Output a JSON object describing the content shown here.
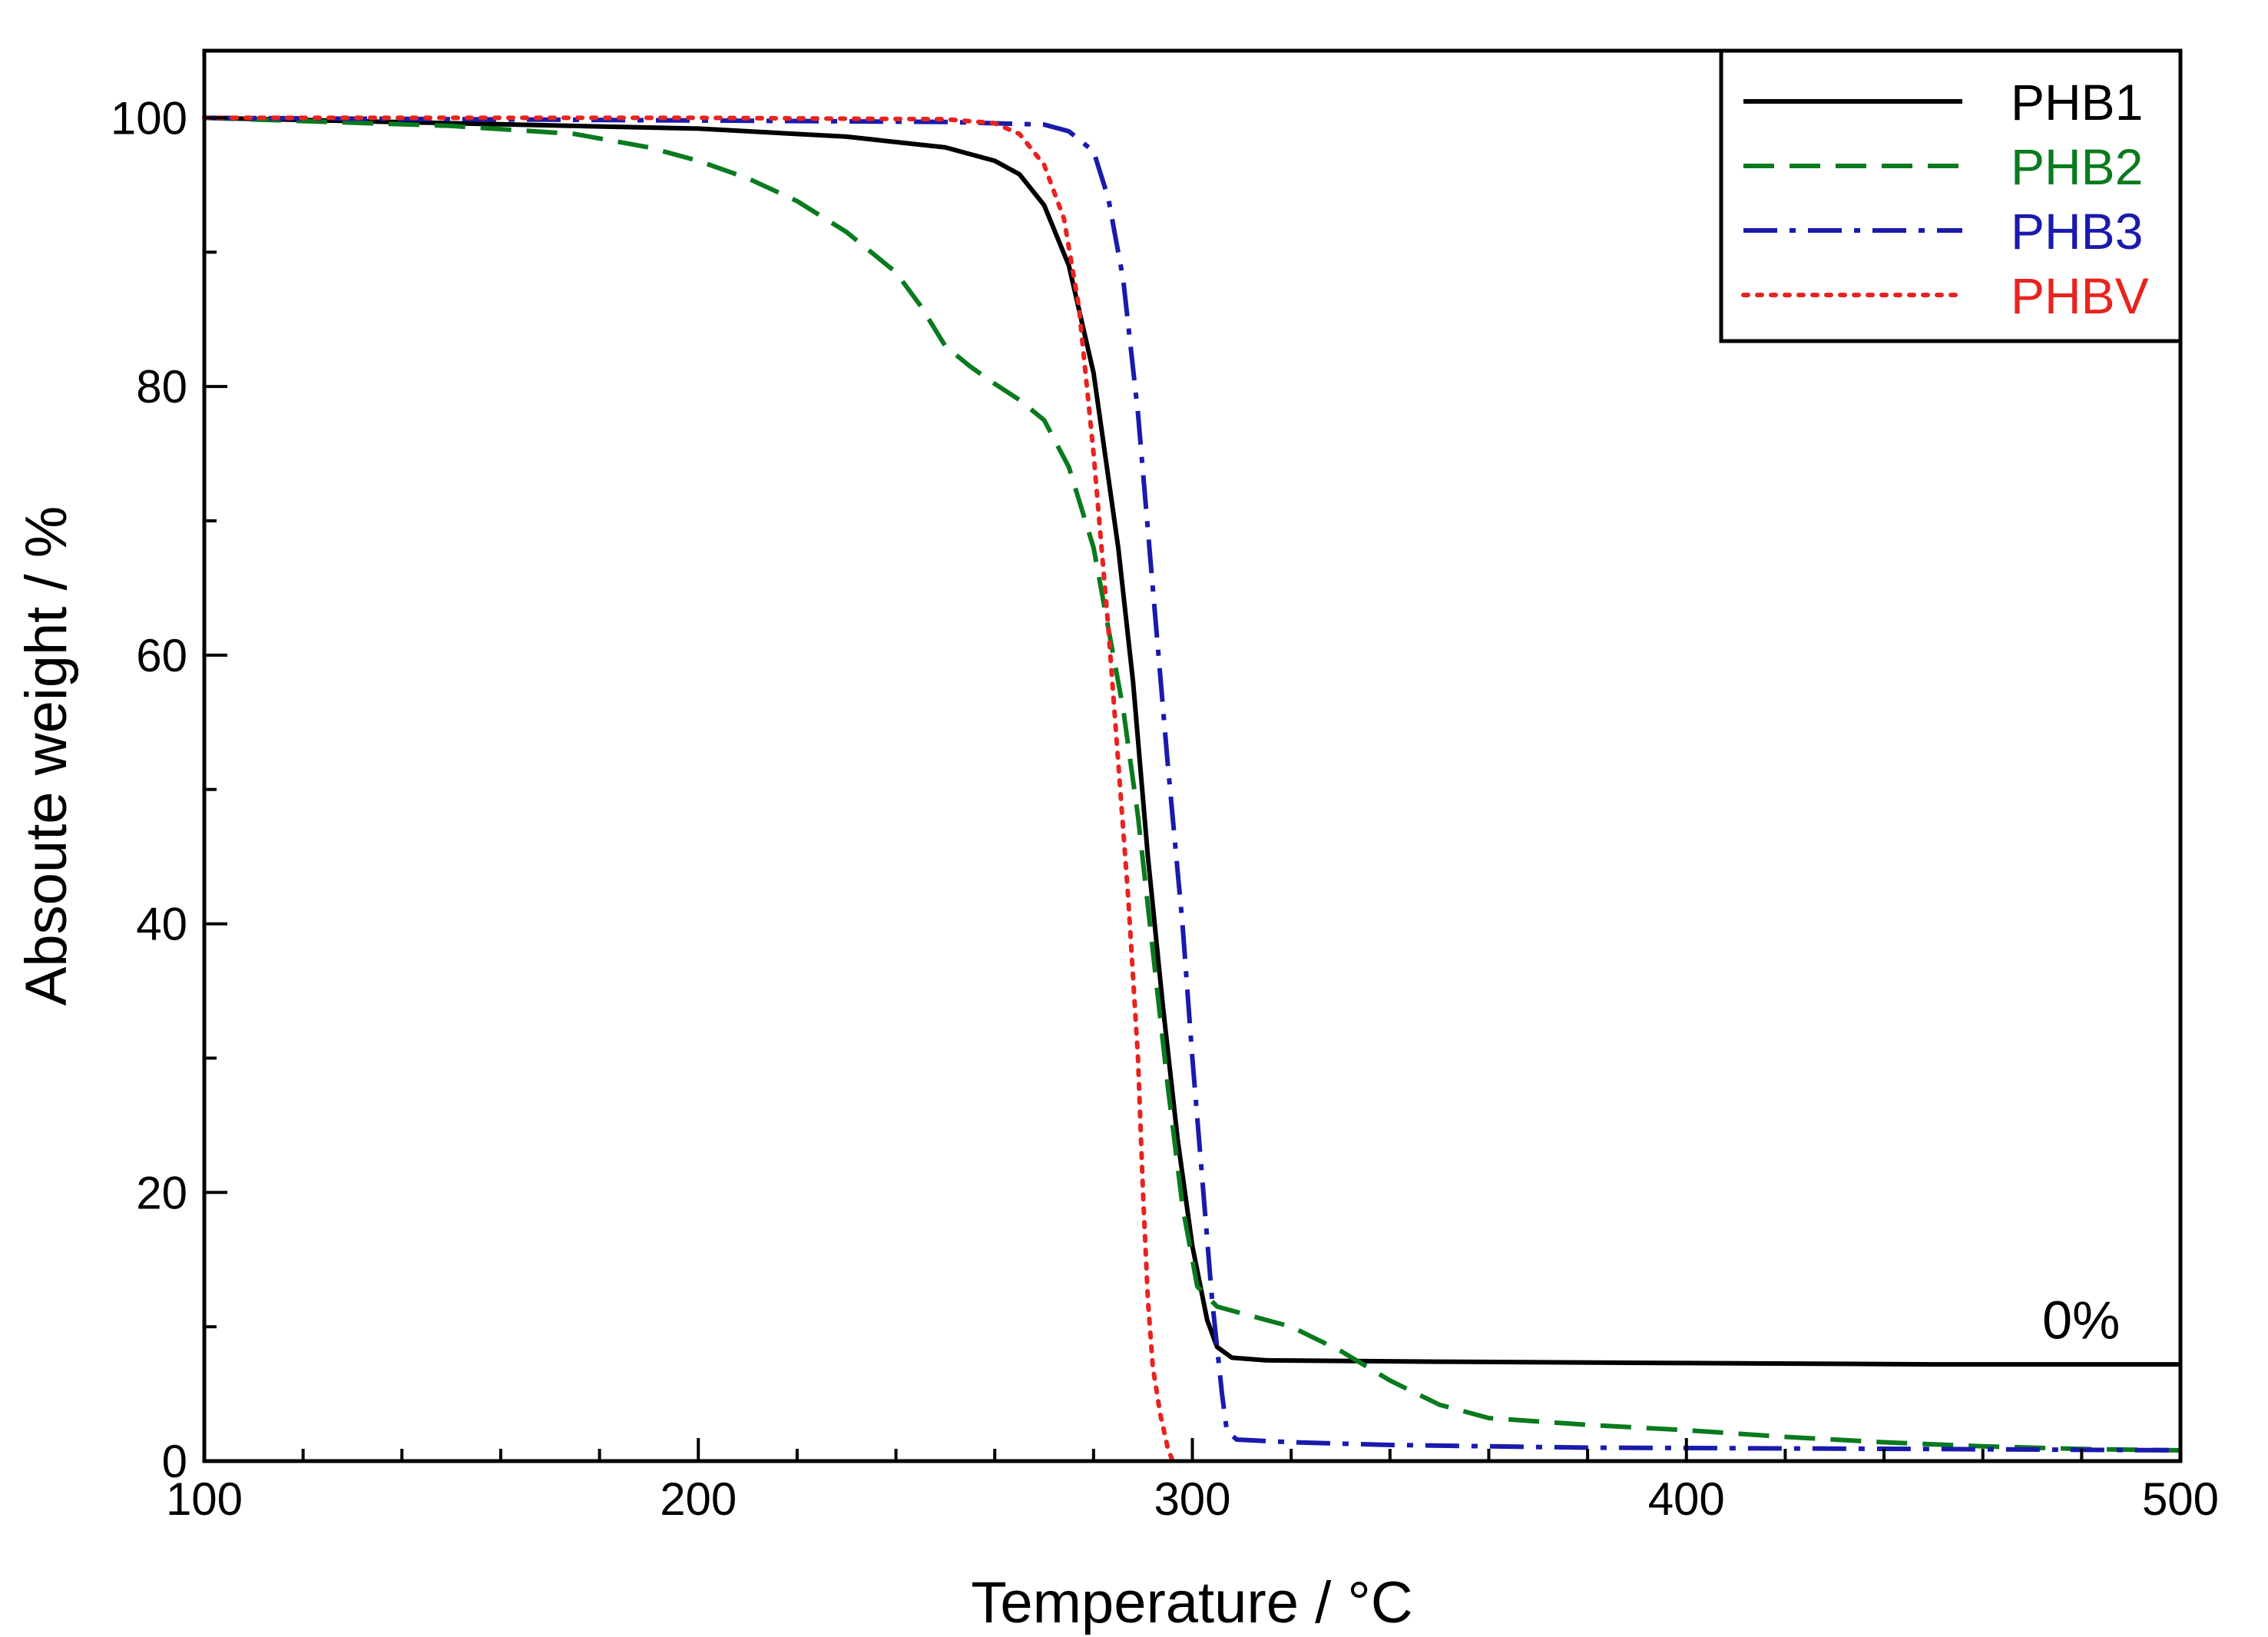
{
  "chart_data": {
    "type": "line",
    "xlabel": "Temperature / °C",
    "ylabel": "Absoute weight / %",
    "xlim": [
      100,
      500
    ],
    "ylim": [
      0,
      105
    ],
    "x_ticks": [
      100,
      200,
      300,
      400,
      500
    ],
    "y_ticks": [
      0,
      20,
      40,
      60,
      80,
      100
    ],
    "x_tick_labels": [
      "100",
      "200",
      "300",
      "400",
      "500"
    ],
    "y_tick_labels": [
      "0",
      "20",
      "40",
      "60",
      "80",
      "100"
    ],
    "grid": false,
    "legend_position": "top-right",
    "annotations": [
      {
        "text": "0%",
        "x": 480,
        "y": 10.5
      }
    ],
    "series": [
      {
        "name": "PHB1",
        "color": "#000000",
        "dash": "solid",
        "points": [
          [
            100,
            100
          ],
          [
            150,
            99.6
          ],
          [
            200,
            99.2
          ],
          [
            230,
            98.6
          ],
          [
            250,
            97.8
          ],
          [
            260,
            96.8
          ],
          [
            265,
            95.8
          ],
          [
            270,
            93.5
          ],
          [
            275,
            89
          ],
          [
            280,
            81
          ],
          [
            285,
            68
          ],
          [
            288,
            58
          ],
          [
            291,
            45
          ],
          [
            294,
            34
          ],
          [
            297,
            24
          ],
          [
            300,
            16
          ],
          [
            303,
            10.5
          ],
          [
            305,
            8.5
          ],
          [
            308,
            7.7
          ],
          [
            315,
            7.5
          ],
          [
            350,
            7.4
          ],
          [
            400,
            7.3
          ],
          [
            450,
            7.2
          ],
          [
            480,
            7.2
          ],
          [
            500,
            7.2
          ]
        ]
      },
      {
        "name": "PHB2",
        "color": "#0a7a1e",
        "dash": "dashed",
        "points": [
          [
            100,
            100
          ],
          [
            150,
            99.4
          ],
          [
            175,
            98.8
          ],
          [
            190,
            97.8
          ],
          [
            200,
            96.8
          ],
          [
            210,
            95.5
          ],
          [
            220,
            93.8
          ],
          [
            230,
            91.5
          ],
          [
            240,
            88.5
          ],
          [
            245,
            86
          ],
          [
            250,
            83
          ],
          [
            255,
            81.5
          ],
          [
            260,
            80.2
          ],
          [
            265,
            79
          ],
          [
            270,
            77.5
          ],
          [
            275,
            74
          ],
          [
            280,
            68
          ],
          [
            283,
            62
          ],
          [
            286,
            56
          ],
          [
            289,
            48
          ],
          [
            292,
            38
          ],
          [
            295,
            28
          ],
          [
            298,
            19
          ],
          [
            301,
            13
          ],
          [
            305,
            11.5
          ],
          [
            310,
            11
          ],
          [
            320,
            10
          ],
          [
            330,
            8.2
          ],
          [
            340,
            6
          ],
          [
            350,
            4.2
          ],
          [
            360,
            3.2
          ],
          [
            380,
            2.7
          ],
          [
            400,
            2.3
          ],
          [
            420,
            1.8
          ],
          [
            440,
            1.4
          ],
          [
            460,
            1.1
          ],
          [
            480,
            0.9
          ],
          [
            500,
            0.8
          ]
        ]
      },
      {
        "name": "PHB3",
        "color": "#1a1aad",
        "dash": "dashdot",
        "points": [
          [
            100,
            100
          ],
          [
            200,
            99.8
          ],
          [
            250,
            99.7
          ],
          [
            270,
            99.5
          ],
          [
            275,
            99
          ],
          [
            280,
            97.5
          ],
          [
            283,
            94
          ],
          [
            286,
            88
          ],
          [
            289,
            78
          ],
          [
            292,
            65
          ],
          [
            295,
            52
          ],
          [
            298,
            40
          ],
          [
            300,
            30
          ],
          [
            302,
            21
          ],
          [
            304,
            12
          ],
          [
            306,
            5
          ],
          [
            307,
            2.2
          ],
          [
            309,
            1.6
          ],
          [
            320,
            1.4
          ],
          [
            340,
            1.2
          ],
          [
            380,
            1.0
          ],
          [
            450,
            0.9
          ],
          [
            500,
            0.8
          ]
        ]
      },
      {
        "name": "PHBV",
        "color": "#e8231f",
        "dash": "dotted",
        "points": [
          [
            100,
            100
          ],
          [
            200,
            100
          ],
          [
            250,
            99.9
          ],
          [
            260,
            99.6
          ],
          [
            265,
            98.8
          ],
          [
            270,
            96.5
          ],
          [
            274,
            92.5
          ],
          [
            277,
            86
          ],
          [
            280,
            75
          ],
          [
            283,
            62
          ],
          [
            285,
            52
          ],
          [
            287,
            42
          ],
          [
            289,
            30
          ],
          [
            290,
            20
          ],
          [
            291,
            12
          ],
          [
            292,
            7
          ],
          [
            293.5,
            3.5
          ],
          [
            295,
            1
          ],
          [
            296,
            0
          ]
        ]
      }
    ]
  }
}
